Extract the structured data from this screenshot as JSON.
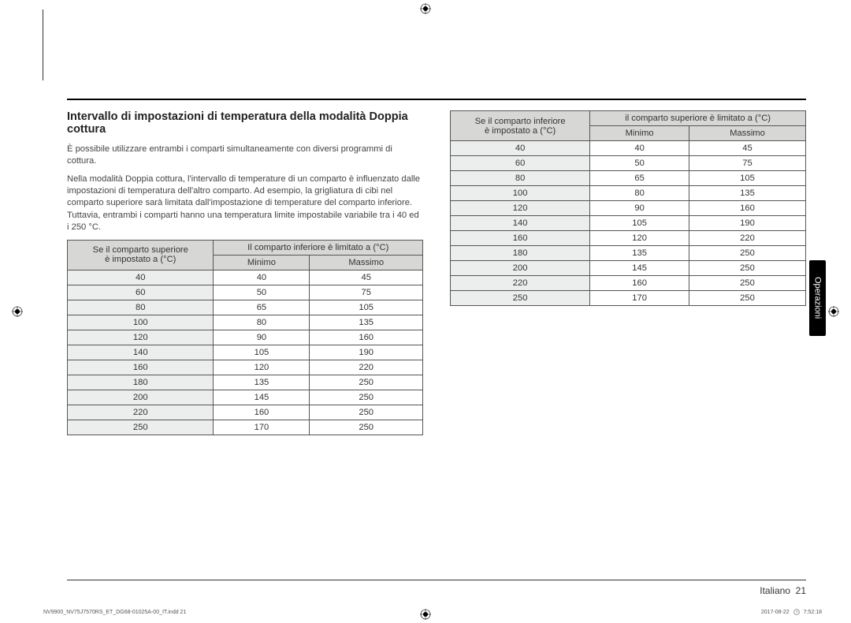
{
  "page": {
    "heading": "Intervallo di impostazioni di temperatura della modalità Doppia cottura",
    "para1": "È possibile utilizzare entrambi i comparti simultaneamente con diversi programmi di cottura.",
    "para2": "Nella modalità Doppia cottura, l'intervallo di temperature di un comparto è influenzato dalle impostazioni di temperatura dell'altro comparto. Ad esempio, la grigliatura di cibi nel comparto superiore sarà limitata dall'impostazione di temperature del comparto inferiore. Tuttavia, entrambi i comparti hanno una temperatura limite impostabile variabile tra i 40 ed i 250 °C."
  },
  "table_left": {
    "type": "table",
    "header_colors": {
      "th_bg": "#d7d8d6",
      "row_header_bg": "#eceded",
      "border": "#555555"
    },
    "col1_header_line1": "Se il comparto superiore",
    "col1_header_line2": "è impostato a (°C)",
    "span_header": "Il comparto inferiore è limitato a (°C)",
    "sub_min": "Minimo",
    "sub_max": "Massimo",
    "rows": [
      [
        "40",
        "40",
        "45"
      ],
      [
        "60",
        "50",
        "75"
      ],
      [
        "80",
        "65",
        "105"
      ],
      [
        "100",
        "80",
        "135"
      ],
      [
        "120",
        "90",
        "160"
      ],
      [
        "140",
        "105",
        "190"
      ],
      [
        "160",
        "120",
        "220"
      ],
      [
        "180",
        "135",
        "250"
      ],
      [
        "200",
        "145",
        "250"
      ],
      [
        "220",
        "160",
        "250"
      ],
      [
        "250",
        "170",
        "250"
      ]
    ]
  },
  "table_right": {
    "type": "table",
    "col1_header_line1": "Se il comparto inferiore",
    "col1_header_line2": "è impostato a (°C)",
    "span_header": "il comparto superiore è limitato a (°C)",
    "sub_min": "Minimo",
    "sub_max": "Massimo",
    "rows": [
      [
        "40",
        "40",
        "45"
      ],
      [
        "60",
        "50",
        "75"
      ],
      [
        "80",
        "65",
        "105"
      ],
      [
        "100",
        "80",
        "135"
      ],
      [
        "120",
        "90",
        "160"
      ],
      [
        "140",
        "105",
        "190"
      ],
      [
        "160",
        "120",
        "220"
      ],
      [
        "180",
        "135",
        "250"
      ],
      [
        "200",
        "145",
        "250"
      ],
      [
        "220",
        "160",
        "250"
      ],
      [
        "250",
        "170",
        "250"
      ]
    ]
  },
  "side_tab": "Operazioni",
  "footer": {
    "lang": "Italiano",
    "page_no": "21"
  },
  "imprint": {
    "left": "NV9900_NV75J7570RS_ET_DG68-01025A-00_IT.indd   21",
    "date": "2017-08-22",
    "time": "7:52:18"
  }
}
